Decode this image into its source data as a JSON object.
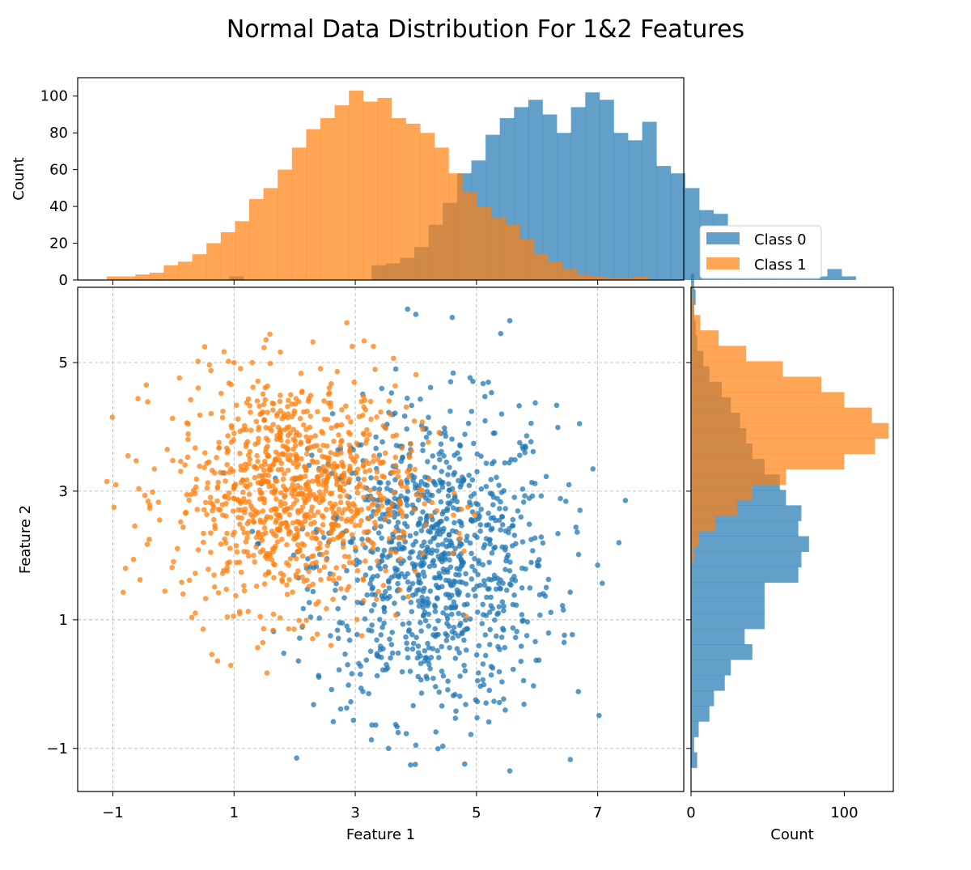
{
  "chart_data": {
    "type": "scatter",
    "title": "Normal Data Distribution For 1&2 Features",
    "colors": {
      "class0": "#1f77b4",
      "class1": "#ff7f0e"
    },
    "legend": {
      "placement": "right of top histogram",
      "entries": [
        "Class 0",
        "Class 1"
      ]
    },
    "scatter": {
      "xlabel": "Feature 1",
      "ylabel": "Feature 2",
      "xlim": [
        -1.58,
        8.42
      ],
      "ylim": [
        -1.67,
        6.17
      ],
      "xticks": [
        -1,
        1,
        3,
        5,
        7
      ],
      "yticks": [
        -1,
        1,
        3,
        5
      ],
      "xtick_labels": [
        "−1",
        "1",
        "3",
        "5",
        "7"
      ],
      "ytick_labels": [
        "−1",
        "1",
        "3",
        "5"
      ],
      "grid": true,
      "series": [
        {
          "name": "Class 0",
          "mean": [
            4.3,
            1.9
          ],
          "std": [
            1.0,
            1.2
          ],
          "count": 1000
        },
        {
          "name": "Class 1",
          "mean": [
            2.0,
            3.0
          ],
          "std": [
            1.0,
            0.9
          ],
          "count": 1000
        }
      ],
      "extra_points": [
        {
          "series": "Class 0",
          "x": 4.0,
          "y": 5.75
        },
        {
          "series": "Class 0",
          "x": 4.6,
          "y": 5.7
        },
        {
          "series": "Class 0",
          "x": 5.55,
          "y": 5.65
        },
        {
          "series": "Class 0",
          "x": 5.4,
          "y": 5.45
        },
        {
          "series": "Class 0",
          "x": 7.35,
          "y": 2.2
        },
        {
          "series": "Class 0",
          "x": 7.0,
          "y": 1.85
        },
        {
          "series": "Class 0",
          "x": 5.55,
          "y": -1.35
        },
        {
          "series": "Class 0",
          "x": 4.0,
          "y": -0.95
        },
        {
          "series": "Class 0",
          "x": 3.55,
          "y": -1.0
        },
        {
          "series": "Class 0",
          "x": 6.7,
          "y": 4.05
        },
        {
          "series": "Class 1",
          "x": -1.1,
          "y": 3.15
        },
        {
          "series": "Class 1",
          "x": -0.95,
          "y": 3.1
        },
        {
          "series": "Class 1",
          "x": -0.98,
          "y": 2.75
        },
        {
          "series": "Class 1",
          "x": -0.75,
          "y": 3.55
        },
        {
          "series": "Class 1",
          "x": -0.4,
          "y": 2.25
        },
        {
          "series": "Class 1",
          "x": 1.0,
          "y": 5.0
        },
        {
          "series": "Class 1",
          "x": 1.3,
          "y": 5.0
        },
        {
          "series": "Class 1",
          "x": 2.95,
          "y": 5.25
        },
        {
          "series": "Class 1",
          "x": 3.3,
          "y": 5.25
        },
        {
          "series": "Class 1",
          "x": 2.6,
          "y": 0.6
        }
      ]
    },
    "top_histogram": {
      "ylabel": "Count",
      "ylim": [
        0,
        110
      ],
      "yticks": [
        0,
        20,
        40,
        60,
        80,
        100
      ],
      "ytick_labels": [
        "0",
        "20",
        "40",
        "60",
        "80",
        "100"
      ],
      "series": [
        {
          "name": "Class 0",
          "bin_start": 0.92,
          "bin_width": 0.235,
          "values": [
            2,
            0,
            0,
            0,
            0,
            0,
            0,
            0,
            0,
            0,
            8,
            9,
            12,
            18,
            30,
            42,
            58,
            65,
            79,
            88,
            94,
            98,
            90,
            80,
            94,
            102,
            98,
            80,
            76,
            86,
            62,
            58,
            50,
            38,
            36,
            24,
            16,
            9,
            6,
            8,
            4,
            2,
            6,
            2
          ]
        },
        {
          "name": "Class 1",
          "bin_start": -1.1,
          "bin_width": 0.235,
          "values": [
            2,
            2,
            3,
            4,
            8,
            10,
            14,
            20,
            26,
            32,
            44,
            50,
            60,
            72,
            82,
            88,
            95,
            103,
            97,
            99,
            88,
            85,
            80,
            72,
            58,
            48,
            40,
            34,
            30,
            22,
            14,
            10,
            6,
            3,
            2,
            1,
            1,
            2
          ]
        }
      ]
    },
    "right_histogram": {
      "xlabel": "Count",
      "xlim": [
        0,
        132
      ],
      "xticks": [
        0,
        100
      ],
      "xtick_labels": [
        "0",
        "100"
      ],
      "series": [
        {
          "name": "Class 0",
          "bin_start": -1.3,
          "bin_width": 0.24,
          "values": [
            4,
            2,
            5,
            12,
            15,
            22,
            26,
            40,
            35,
            48,
            48,
            48,
            70,
            72,
            77,
            70,
            72,
            62,
            58,
            48,
            40,
            36,
            32,
            26,
            20,
            12,
            8,
            4,
            3,
            2,
            3,
            2
          ]
        },
        {
          "name": "Class 1",
          "bin_start": 0.7,
          "bin_width": 0.24,
          "values": [
            0,
            0,
            0,
            0,
            0,
            2,
            5,
            16,
            30,
            40,
            62,
            100,
            120,
            129,
            118,
            100,
            85,
            60,
            36,
            18,
            6,
            2,
            1
          ]
        }
      ]
    }
  }
}
